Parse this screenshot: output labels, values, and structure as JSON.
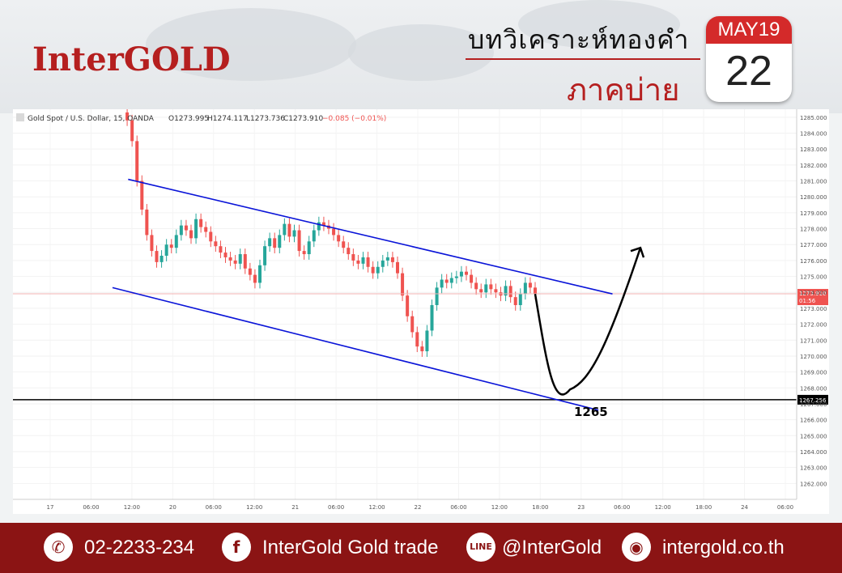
{
  "brand": {
    "logo": "InterGOLD",
    "accent": "#b51f1f",
    "footer_bg": "#8b1414"
  },
  "header": {
    "title": "บทวิเคราะห์ทองคำ",
    "subtitle": "ภาคบ่าย"
  },
  "calendar": {
    "month": "MAY19",
    "day": "22"
  },
  "legend": {
    "symbol": "Gold Spot / U.S. Dollar, 15, OANDA",
    "open": "O1273.995",
    "high": "H1274.117",
    "low": "L1273.736",
    "close": "C1273.910",
    "change": "−0.085 (−0.01%)"
  },
  "chart_data": {
    "type": "line",
    "ylim": [
      1261,
      1285.5
    ],
    "y_ticks": [
      "1285.000",
      "1284.000",
      "1283.000",
      "1282.000",
      "1281.000",
      "1280.000",
      "1279.000",
      "1278.000",
      "1277.000",
      "1276.000",
      "1275.000",
      "1274.000",
      "1273.000",
      "1272.000",
      "1271.000",
      "1270.000",
      "1269.000",
      "1268.000",
      "1267.000",
      "1266.000",
      "1265.000",
      "1264.000",
      "1263.000",
      "1262.000"
    ],
    "x_ticks": [
      "17",
      "06:00",
      "12:00",
      "20",
      "06:00",
      "12:00",
      "21",
      "06:00",
      "12:00",
      "22",
      "06:00",
      "12:00",
      "18:00",
      "23",
      "06:00",
      "12:00",
      "18:00",
      "24",
      "06:00"
    ],
    "price_series": [
      1285.3,
      1284.8,
      1283.5,
      1281.0,
      1279.2,
      1277.6,
      1276.6,
      1275.9,
      1276.3,
      1277.0,
      1276.8,
      1277.6,
      1278.2,
      1277.9,
      1277.4,
      1278.6,
      1278.1,
      1277.8,
      1277.2,
      1276.9,
      1276.5,
      1276.2,
      1276.0,
      1275.8,
      1276.4,
      1275.5,
      1275.1,
      1274.6,
      1275.7,
      1276.9,
      1277.4,
      1276.8,
      1277.6,
      1278.3,
      1277.5,
      1277.9,
      1276.6,
      1276.4,
      1277.2,
      1277.9,
      1278.4,
      1278.2,
      1278.0,
      1277.6,
      1277.2,
      1276.8,
      1276.4,
      1276.0,
      1275.8,
      1276.2,
      1275.6,
      1275.2,
      1275.6,
      1276.0,
      1276.2,
      1275.9,
      1275.2,
      1273.8,
      1272.5,
      1271.5,
      1270.6,
      1270.3,
      1271.6,
      1273.2,
      1274.3,
      1274.8,
      1274.6,
      1274.9,
      1275.0,
      1275.3,
      1275.1,
      1274.6,
      1274.2,
      1274.0,
      1274.5,
      1274.2,
      1274.0,
      1273.8,
      1274.4,
      1273.7,
      1273.2,
      1273.9,
      1274.6,
      1274.3,
      1273.9
    ],
    "last_price": "1273.910",
    "countdown": "01:56",
    "support_level": "1267.256",
    "support_label": "1265",
    "channel": {
      "upper": [
        [
          1281.1,
          0.147
        ],
        [
          1273.9,
          0.765
        ]
      ],
      "lower": [
        [
          1274.3,
          0.127
        ],
        [
          1266.6,
          0.747
        ]
      ]
    },
    "projection": "down to 1267.9 then up",
    "colors": {
      "up": "#26a69a",
      "down": "#ef5350",
      "channel": "#0a14d8",
      "support": "#000000",
      "last": "#ef5350"
    }
  },
  "footer": {
    "phone": "02-2233-234",
    "facebook": "InterGold Gold trade",
    "line": "@InterGold",
    "website": "intergold.co.th",
    "icons": [
      "phone-icon",
      "facebook-icon",
      "line-icon",
      "globe-icon"
    ]
  }
}
